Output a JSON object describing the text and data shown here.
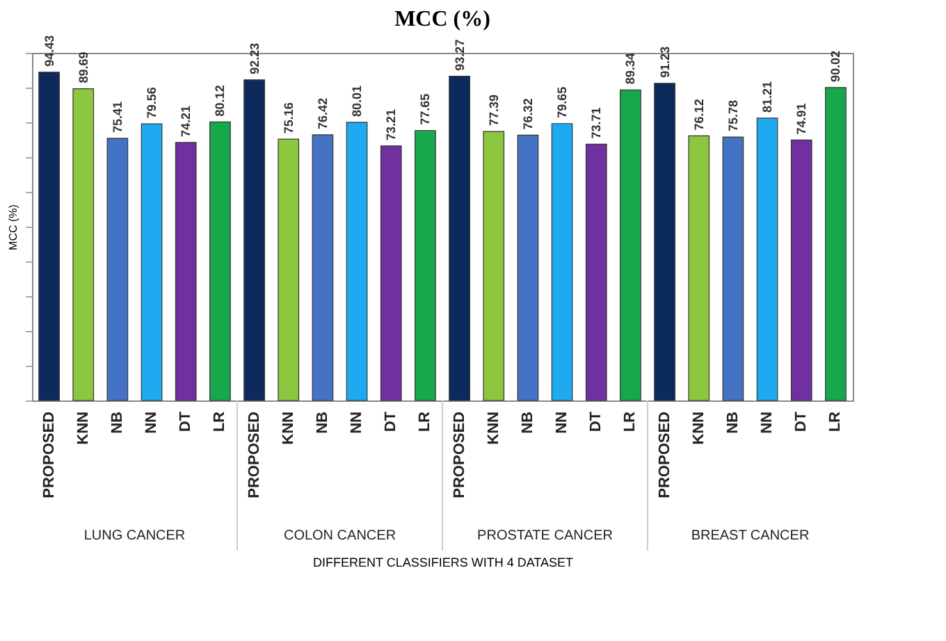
{
  "chart_data": {
    "type": "bar",
    "title": "MCC (%)",
    "ylabel": "MCC (%)",
    "xlabel": "DIFFERENT CLASSIFIERS WITH 4 DATASET",
    "categories": [
      "PROPOSED",
      "KNN",
      "NB",
      "NN",
      "DT",
      "LR",
      "PROPOSED",
      "KNN",
      "NB",
      "NN",
      "DT",
      "LR",
      "PROPOSED",
      "KNN",
      "NB",
      "NN",
      "DT",
      "LR",
      "PROPOSED",
      "KNN",
      "NB",
      "NN",
      "DT",
      "LR"
    ],
    "values": [
      94.43,
      89.69,
      75.41,
      79.56,
      74.21,
      80.12,
      92.23,
      75.16,
      76.42,
      80.01,
      73.21,
      77.65,
      93.27,
      77.39,
      76.32,
      79.65,
      73.71,
      89.34,
      91.23,
      76.12,
      75.78,
      81.21,
      74.91,
      90.02
    ],
    "colors": [
      "#0d2a5c",
      "#8dc63f",
      "#4472c4",
      "#1eaaf1",
      "#7030a0",
      "#16a84b",
      "#0d2a5c",
      "#8dc63f",
      "#4472c4",
      "#1eaaf1",
      "#7030a0",
      "#16a84b",
      "#0d2a5c",
      "#8dc63f",
      "#4472c4",
      "#1eaaf1",
      "#7030a0",
      "#16a84b",
      "#0d2a5c",
      "#8dc63f",
      "#4472c4",
      "#1eaaf1",
      "#7030a0",
      "#16a84b"
    ],
    "annotations": [
      "LUNG CANCER",
      "COLON CANCER",
      "PROSTATE CANCER",
      "BREAST CANCER"
    ],
    "ylim": [
      0,
      100
    ],
    "tick_labels": "x",
    "data_labels": true,
    "grid": false
  }
}
